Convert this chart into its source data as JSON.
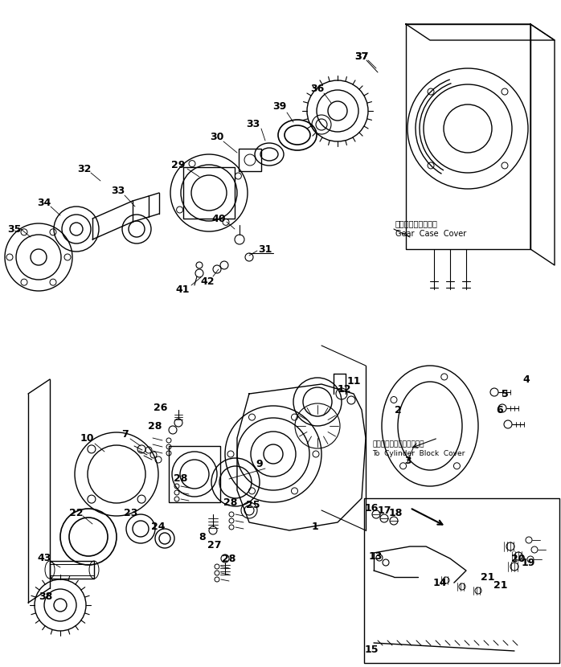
{
  "bg_color": "#ffffff",
  "line_color": "#000000",
  "fig_width": 6.98,
  "fig_height": 8.3,
  "dpi": 100,
  "gear_case_jp": "ギヤーケースカバー",
  "gear_case_en": "Gear  Case  Cover",
  "cylinder_jp": "シリンダブロックカバーヘ",
  "cylinder_en": "To  Cylinder  Block  Cover"
}
